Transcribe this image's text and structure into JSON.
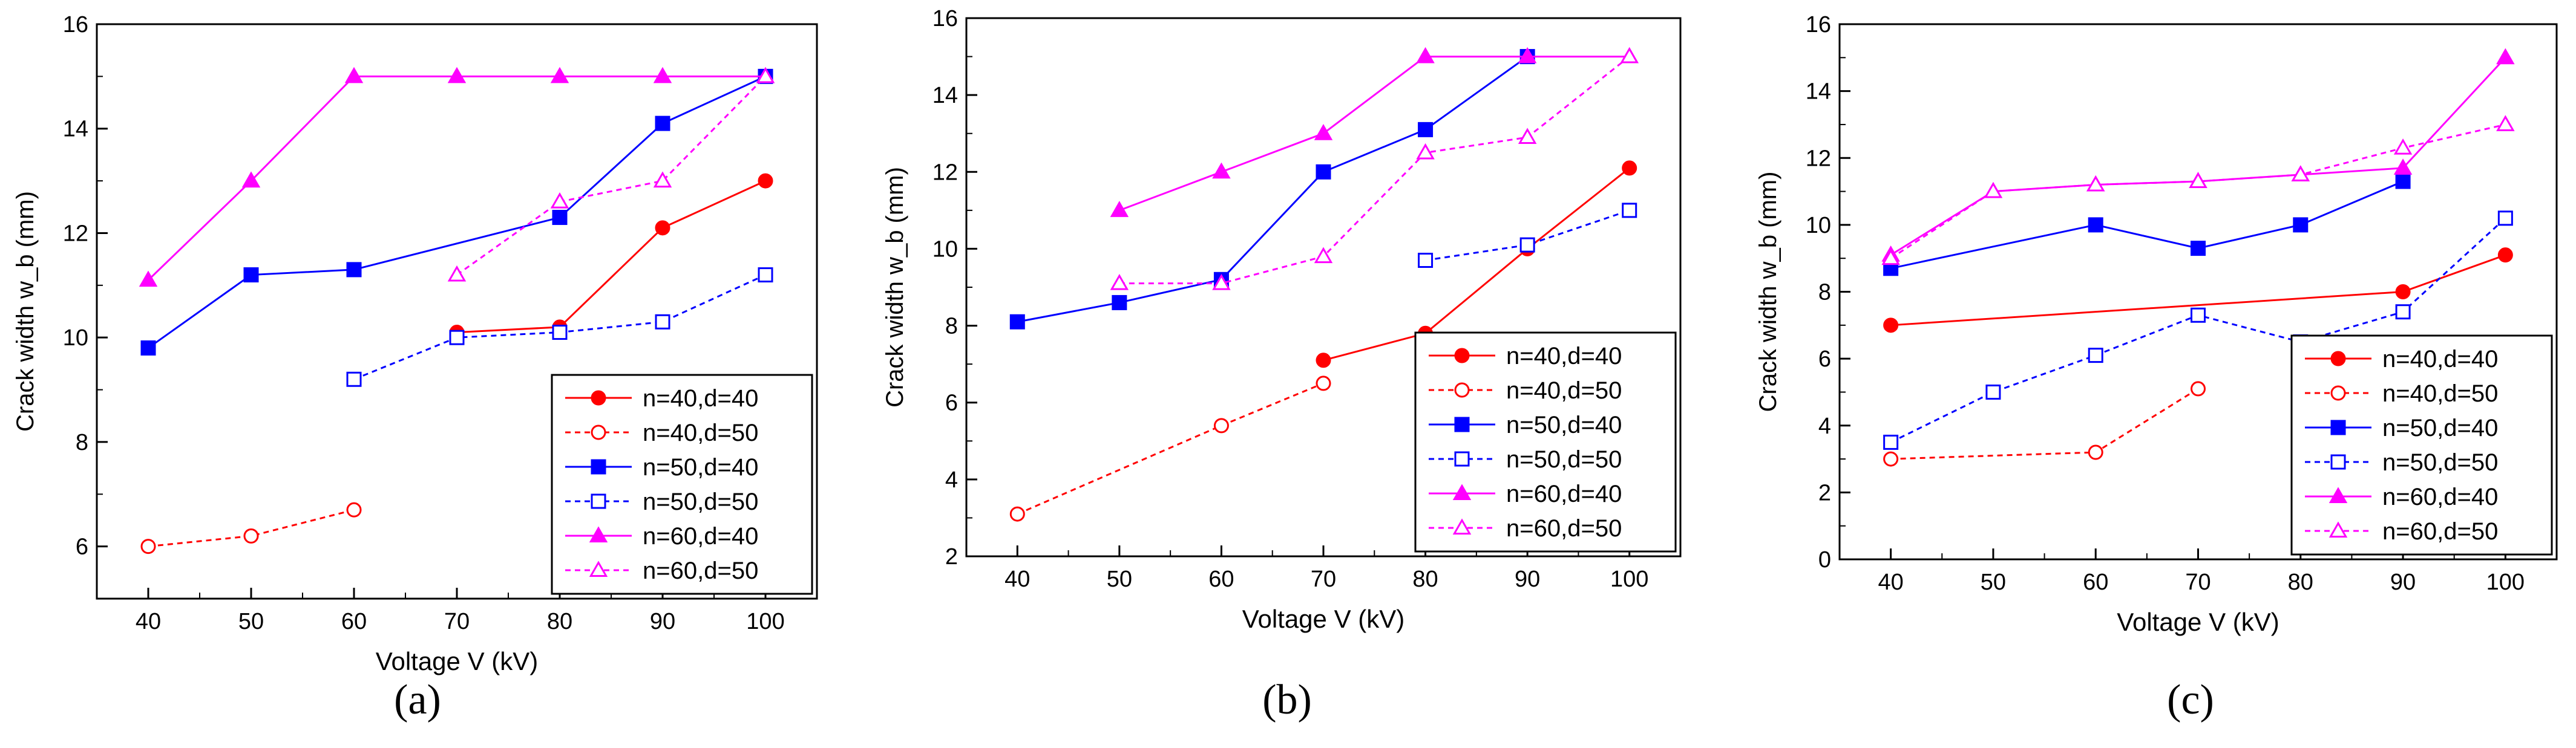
{
  "figure": {
    "series_styles": [
      {
        "name": "n=40,d=40",
        "color": "#ff0000",
        "marker": "circle",
        "filled": true,
        "dashed": false
      },
      {
        "name": "n=40,d=50",
        "color": "#ff0000",
        "marker": "circle",
        "filled": false,
        "dashed": true
      },
      {
        "name": "n=50,d=40",
        "color": "#0000ff",
        "marker": "square",
        "filled": true,
        "dashed": false
      },
      {
        "name": "n=50,d=50",
        "color": "#0000ff",
        "marker": "square",
        "filled": false,
        "dashed": true
      },
      {
        "name": "n=60,d=40",
        "color": "#ff00ff",
        "marker": "triangle",
        "filled": true,
        "dashed": false
      },
      {
        "name": "n=60,d=50",
        "color": "#ff00ff",
        "marker": "triangle",
        "filled": false,
        "dashed": true
      }
    ]
  },
  "chart_data": [
    {
      "type": "line",
      "panel_label": "(a)",
      "panel_letter": "a",
      "xlabel": "Voltage V (kV)",
      "ylabel": "Crack width w_b (mm)",
      "xlim": [
        35,
        105
      ],
      "ylim": [
        5,
        16
      ],
      "xticks": [
        40,
        50,
        60,
        70,
        80,
        90,
        100
      ],
      "yticks": [
        6,
        8,
        10,
        12,
        14,
        16
      ],
      "legend_position": "bottom-right",
      "series": [
        {
          "name": "n=40,d=40",
          "x": [
            70,
            80,
            90,
            100
          ],
          "values": [
            10.1,
            10.2,
            12.1,
            13.0
          ]
        },
        {
          "name": "n=40,d=50",
          "x": [
            40,
            50,
            60
          ],
          "values": [
            6.0,
            6.2,
            6.7
          ]
        },
        {
          "name": "n=50,d=40",
          "x": [
            40,
            50,
            60,
            80,
            90,
            100
          ],
          "values": [
            9.8,
            11.2,
            11.3,
            12.3,
            14.1,
            15.0
          ]
        },
        {
          "name": "n=50,d=50",
          "x": [
            60,
            70,
            80,
            90,
            100
          ],
          "values": [
            9.2,
            10.0,
            10.1,
            10.3,
            11.2
          ]
        },
        {
          "name": "n=60,d=40",
          "x": [
            40,
            50,
            60,
            70,
            80,
            90,
            100
          ],
          "values": [
            11.1,
            13.0,
            15.0,
            15.0,
            15.0,
            15.0,
            15.0
          ]
        },
        {
          "name": "n=60,d=50",
          "x": [
            70,
            80,
            90,
            100
          ],
          "values": [
            11.2,
            12.6,
            13.0,
            15.0
          ]
        }
      ]
    },
    {
      "type": "line",
      "panel_label": "(b)",
      "panel_letter": "b",
      "xlabel": "Voltage V (kV)",
      "ylabel": "Crack width w_b (mm)",
      "xlim": [
        35,
        105
      ],
      "ylim": [
        2,
        16
      ],
      "xticks": [
        40,
        50,
        60,
        70,
        80,
        90,
        100
      ],
      "yticks": [
        2,
        4,
        6,
        8,
        10,
        12,
        14,
        16
      ],
      "legend_position": "bottom-right",
      "series": [
        {
          "name": "n=40,d=40",
          "x": [
            70,
            80,
            90,
            100
          ],
          "values": [
            7.1,
            7.8,
            10.0,
            12.1
          ]
        },
        {
          "name": "n=40,d=50",
          "x": [
            40,
            60,
            70
          ],
          "values": [
            3.1,
            5.4,
            6.5
          ]
        },
        {
          "name": "n=50,d=40",
          "x": [
            40,
            50,
            60,
            70,
            80,
            90
          ],
          "values": [
            8.1,
            8.6,
            9.2,
            12.0,
            13.1,
            15.0
          ]
        },
        {
          "name": "n=50,d=50",
          "x": [
            80,
            90,
            100
          ],
          "values": [
            9.7,
            10.1,
            11.0
          ]
        },
        {
          "name": "n=60,d=40",
          "x": [
            50,
            60,
            70,
            80,
            90,
            100
          ],
          "values": [
            11.0,
            12.0,
            13.0,
            15.0,
            15.0,
            15.0
          ]
        },
        {
          "name": "n=60,d=50",
          "x": [
            50,
            60,
            70,
            80,
            90,
            100
          ],
          "values": [
            9.1,
            9.1,
            9.8,
            12.5,
            12.9,
            15.0
          ]
        }
      ]
    },
    {
      "type": "line",
      "panel_label": "(c)",
      "panel_letter": "c",
      "xlabel": "Voltage V (kV)",
      "ylabel": "Crack width w_b (mm)",
      "xlim": [
        35,
        105
      ],
      "ylim": [
        0,
        16
      ],
      "xticks": [
        40,
        50,
        60,
        70,
        80,
        90,
        100
      ],
      "yticks": [
        0,
        2,
        4,
        6,
        8,
        10,
        12,
        14,
        16
      ],
      "legend_position": "bottom-right",
      "series": [
        {
          "name": "n=40,d=40",
          "x": [
            40,
            90,
            100
          ],
          "values": [
            7.0,
            8.0,
            9.1
          ]
        },
        {
          "name": "n=40,d=50",
          "x": [
            40,
            60,
            70
          ],
          "values": [
            3.0,
            3.2,
            5.1
          ]
        },
        {
          "name": "n=50,d=40",
          "x": [
            40,
            60,
            70,
            80,
            90
          ],
          "values": [
            8.7,
            10.0,
            9.3,
            10.0,
            11.3
          ]
        },
        {
          "name": "n=50,d=50",
          "x": [
            40,
            50,
            60,
            70,
            80,
            90,
            100
          ],
          "values": [
            3.5,
            5.0,
            6.1,
            7.3,
            6.5,
            7.4,
            10.2
          ]
        },
        {
          "name": "n=60,d=40",
          "x": [
            40,
            50,
            60,
            70,
            80,
            90,
            100
          ],
          "values": [
            9.1,
            11.0,
            11.2,
            11.3,
            11.5,
            11.7,
            15.0
          ]
        },
        {
          "name": "n=60,d=50",
          "x": [
            40,
            50,
            60,
            70,
            80,
            90,
            100
          ],
          "values": [
            9.0,
            11.0,
            11.2,
            11.3,
            11.5,
            12.3,
            13.0
          ]
        }
      ]
    }
  ]
}
